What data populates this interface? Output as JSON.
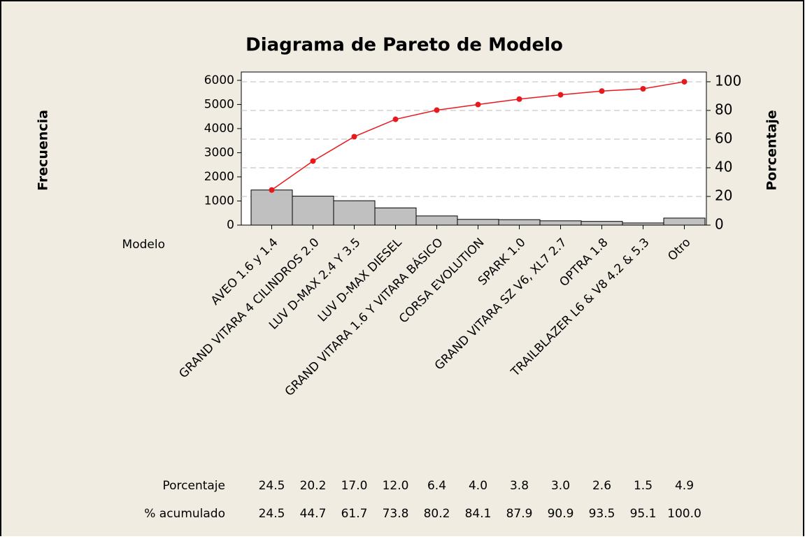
{
  "chart_data": {
    "type": "pareto",
    "title": "Diagrama de Pareto de Modelo",
    "x_label": "Modelo",
    "y_label": "Frecuencia",
    "y2_label": "Porcentaje",
    "categories": [
      "AVEO 1.6 y 1.4",
      "GRAND VITARA 4 CILINDROS 2.0",
      "LUV D-MAX 2.4 Y 3.5",
      "LUV D-MAX  DIESEL",
      "GRAND VITARA 1.6  Y VITARA BÁSICO",
      "CORSA EVOLUTION",
      "SPARK 1.0",
      "GRAND VITARA SZ V6, XL7 2.7",
      "OPTRA 1.8",
      "TRAILBLAZER L6 & V8 4.2 & 5.3",
      "Otro"
    ],
    "series": [
      {
        "name": "Frecuencia",
        "color": "#c0c0c0",
        "values": [
          1455,
          1200,
          1010,
          713,
          380,
          238,
          226,
          178,
          154,
          89,
          291
        ]
      },
      {
        "name": "% acumulado",
        "color": "#e8191c",
        "axis": "y2",
        "values": [
          24.5,
          44.7,
          61.7,
          73.8,
          80.2,
          84.1,
          87.9,
          90.9,
          93.5,
          95.1,
          100.0
        ],
        "value_labels": [
          "24.5",
          "44.7",
          "61.7",
          "73.8",
          "80.2",
          "84.1",
          "87.9",
          "90.9",
          "93.5",
          "95.1",
          "100.0"
        ]
      },
      {
        "name": "Porcentaje",
        "values": [
          24.5,
          20.2,
          17.0,
          12.0,
          6.4,
          4.0,
          3.8,
          3.0,
          2.6,
          1.5,
          4.9
        ],
        "value_labels": [
          "24.5",
          "20.2",
          "17.0",
          "12.0",
          "6.4",
          "4.0",
          "3.8",
          "3.0",
          "2.6",
          "1.5",
          "4.9"
        ]
      }
    ],
    "ylim": [
      0,
      6345
    ],
    "yticks": [
      0,
      1000,
      2000,
      3000,
      4000,
      5000,
      6000
    ],
    "y2lim": [
      0,
      106.8
    ],
    "y2ticks": [
      0,
      20,
      40,
      60,
      80,
      100
    ],
    "grid": true
  }
}
